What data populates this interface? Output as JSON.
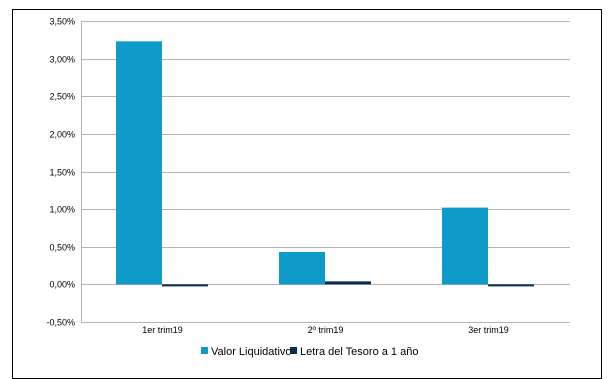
{
  "chart_data": {
    "type": "bar",
    "categories": [
      "1er trim19",
      "2º trim19",
      "3er trim19"
    ],
    "series": [
      {
        "name": "Valor Liquidativo",
        "color": "#0e9bc9",
        "values": [
          3.23,
          0.43,
          1.02
        ]
      },
      {
        "name": "Letra del Tesoro a 1 año",
        "color": "#0b2d4c",
        "values": [
          -0.02,
          0.04,
          -0.01
        ]
      }
    ],
    "ylim": [
      -0.5,
      3.5
    ],
    "yticks": [
      3.5,
      3.0,
      2.5,
      2.0,
      1.5,
      1.0,
      0.5,
      0.0,
      -0.5
    ],
    "ytick_labels": [
      "3,50%",
      "3,00%",
      "2,50%",
      "2,00%",
      "1,50%",
      "1,00%",
      "0,50%",
      "0,00%",
      "-0,50%"
    ],
    "grid": true,
    "legend_position": "bottom"
  }
}
